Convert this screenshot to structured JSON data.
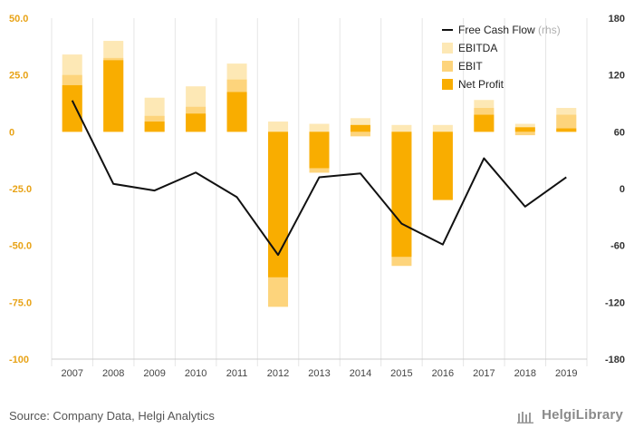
{
  "chart_data": {
    "type": "bar",
    "categories": [
      "2007",
      "2008",
      "2009",
      "2010",
      "2011",
      "2012",
      "2013",
      "2014",
      "2015",
      "2016",
      "2017",
      "2018",
      "2019"
    ],
    "series": [
      {
        "name": "EBITDA",
        "axis": "left",
        "color": "#fde8b5",
        "values": [
          34,
          40,
          15,
          20,
          30,
          4.5,
          3.5,
          6,
          3,
          3,
          14,
          3.5,
          10.5
        ]
      },
      {
        "name": "EBIT",
        "axis": "left",
        "color": "#fdd47c",
        "values": [
          25,
          32.5,
          7,
          11,
          23,
          -77,
          -18,
          -2,
          -59,
          -30,
          10.5,
          -1.5,
          7.5
        ]
      },
      {
        "name": "Net Profit",
        "axis": "left",
        "color": "#f9ad00",
        "values": [
          20.5,
          31.5,
          4.5,
          8,
          17.5,
          -64,
          -16,
          3,
          -55,
          -30,
          7.5,
          2,
          1.5
        ]
      },
      {
        "name": "Free Cash Flow",
        "note": "(rhs)",
        "axis": "right",
        "type": "line",
        "color": "#111111",
        "values": [
          93,
          5,
          -2,
          17,
          -9,
          -70,
          12,
          16,
          -37,
          -59,
          32,
          -19,
          12
        ]
      }
    ],
    "yleft": {
      "min": -100,
      "max": 50,
      "ticks": [
        "50.0",
        "25.0",
        "0",
        "-25.0",
        "-50.0",
        "-75.0",
        "-100"
      ],
      "tick_values": [
        50,
        25,
        0,
        -25,
        -50,
        -75,
        -100
      ]
    },
    "yright": {
      "min": -180,
      "max": 180,
      "ticks": [
        "180",
        "120",
        "60",
        "0",
        "-60",
        "-120",
        "-180"
      ],
      "tick_values": [
        180,
        120,
        60,
        0,
        -60,
        -120,
        -180
      ]
    },
    "legend": {
      "placement": "top-right"
    },
    "grid": "vertical"
  },
  "footer": {
    "source": "Source: Company Data, Helgi Analytics",
    "brand": "HelgiLibrary"
  }
}
